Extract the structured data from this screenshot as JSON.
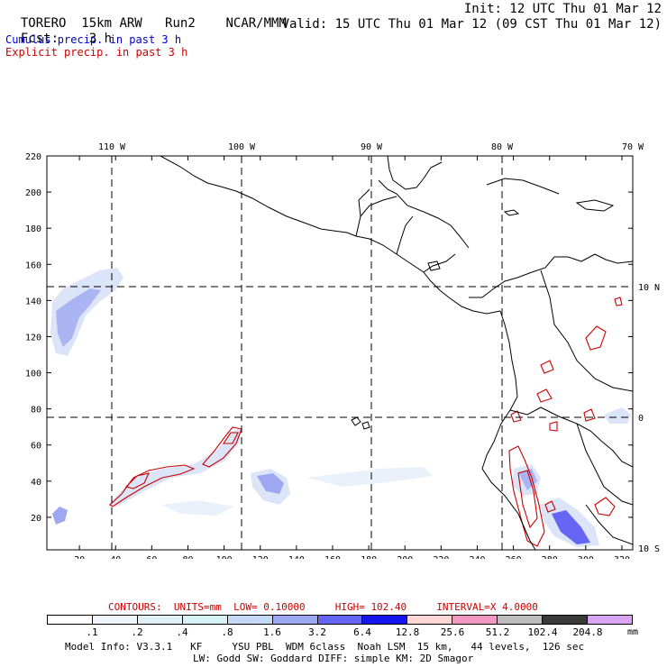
{
  "header": {
    "model": "TORERO",
    "resolution": "15km ARW",
    "run": "Run2",
    "org": "NCAR/MMM",
    "init": "Init: 12 UTC Thu 01 Mar 12",
    "fcst_label": "Fcst:",
    "fcst_value": "3 h",
    "valid": "Valid: 15 UTC Thu 01 Mar 12 (09 CST Thu 01 Mar 12)"
  },
  "product_lines": {
    "cumulus": "Cumulus precip. in past 3 h",
    "explicit": "Explicit precip. in past 3 h"
  },
  "colors": {
    "cumulus_text": "#0000cc",
    "explicit_text": "#cc0000",
    "contour": "#cc0000",
    "land_line": "#000000"
  },
  "map": {
    "top_lon_labels": [
      "110 W",
      "100 W",
      "90 W",
      "80 W",
      "70 W"
    ],
    "right_lat_labels": [
      "10 N",
      "0",
      "10 S"
    ],
    "left_grid_labels": [
      "220",
      "200",
      "180",
      "160",
      "140",
      "120",
      "100",
      "80",
      "60",
      "40",
      "20"
    ],
    "bottom_grid_labels": [
      "20",
      "40",
      "60",
      "80",
      "100",
      "120",
      "140",
      "160",
      "180",
      "200",
      "220",
      "240",
      "260",
      "280",
      "300",
      "320"
    ]
  },
  "contour_info": {
    "label": "CONTOURS:",
    "units": "UNITS=mm",
    "low": "LOW= 0.10000",
    "high": "HIGH= 102.40",
    "interval": "INTERVAL=X 4.0000"
  },
  "legend": {
    "colors": [
      "#ffffff",
      "#eef6fb",
      "#dff0f8",
      "#d7f2f7",
      "#c4d9f5",
      "#9ea8f2",
      "#6666f4",
      "#1515ee",
      "#fcd5d5",
      "#f098c2",
      "#bdbdbd",
      "#3a3a3a",
      "#d9a6f4"
    ],
    "labels": [
      ".1",
      ".2",
      ".4",
      ".8",
      "1.6",
      "3.2",
      "6.4",
      "12.8",
      "25.6",
      "51.2",
      "102.4",
      "204.8"
    ],
    "unit": "mm"
  },
  "footer": {
    "line1": "Model Info: V3.3.1   KF     YSU PBL  WDM 6class  Noah LSM  15 km,   44 levels,  126 sec",
    "line2": "LW: Godd SW: Goddard DIFF: simple KM: 2D Smagor"
  }
}
